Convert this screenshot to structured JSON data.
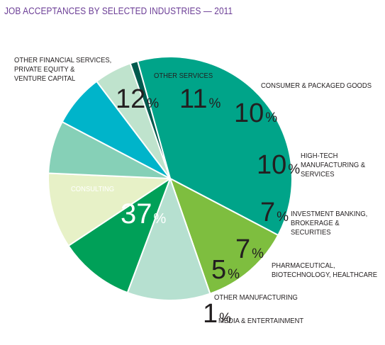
{
  "title": "JOB ACCEPTANCES BY SELECTED INDUSTRIES — 2011",
  "colors": {
    "title": "#6b3d96",
    "label_dark": "#231f20",
    "label_light": "#ffffff",
    "border": "#ffffff"
  },
  "chart_data": {
    "type": "pie",
    "title": "JOB ACCEPTANCES BY SELECTED INDUSTRIES — 2011",
    "unit": "%",
    "slices": [
      {
        "label": "CONSULTING",
        "value": 37,
        "color": "#00a489"
      },
      {
        "label": "OTHER FINANCIAL SERVICES, PRIVATE EQUITY & VENTURE CAPITAL",
        "value": 12,
        "color": "#7ebe3f"
      },
      {
        "label": "OTHER SERVICES",
        "value": 11,
        "color": "#b6e0d0"
      },
      {
        "label": "CONSUMER & PACKAGED GOODS",
        "value": 10,
        "color": "#00a058"
      },
      {
        "label": "HIGH-TECH MANUFACTURING & SERVICES",
        "value": 10,
        "color": "#e7f1c7"
      },
      {
        "label": "INVESTMENT BANKING, BROKERAGE & SECURITIES",
        "value": 7,
        "color": "#86d0b7"
      },
      {
        "label": "PHARMACEUTICAL, BIOTECHNOLOGY, HEALTHCARE",
        "value": 7,
        "color": "#00b4ca"
      },
      {
        "label": "OTHER MANUFACTURING",
        "value": 5,
        "color": "#bfe3cd"
      },
      {
        "label": "MEDIA & ENTERTAINMENT",
        "value": 1,
        "color": "#005a4e"
      }
    ]
  }
}
